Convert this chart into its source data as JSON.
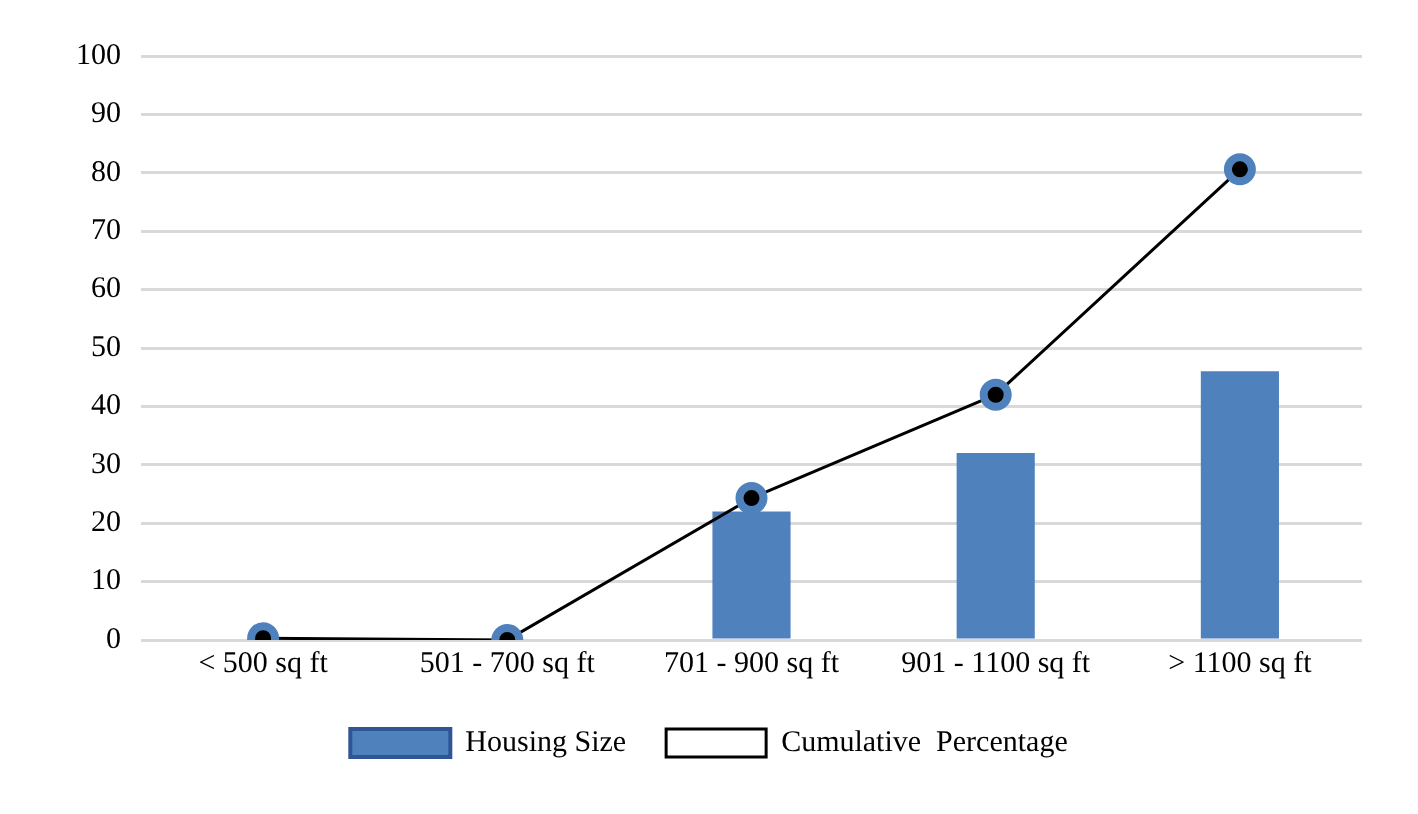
{
  "chart_data": {
    "type": "bar",
    "categories": [
      "< 500 sq ft",
      "501 - 700 sq ft",
      "701 - 900 sq ft",
      "901 - 1100 sq ft",
      "> 1100 sq ft"
    ],
    "series": [
      {
        "name": "Housing Size",
        "color": "#4f81bd",
        "values": [
          0,
          0,
          22,
          32,
          46
        ]
      },
      {
        "name": "Cumulative  Percentage",
        "type": "line",
        "color": "#000000",
        "values": [
          0.3,
          0,
          24.3,
          42,
          80.6
        ]
      }
    ],
    "ylim": [
      0,
      100
    ],
    "yticks": [
      0,
      10,
      20,
      30,
      40,
      50,
      60,
      70,
      80,
      90,
      100
    ],
    "grid": "y",
    "legend": "bottom",
    "marker": "circle",
    "line_style": "solid"
  }
}
